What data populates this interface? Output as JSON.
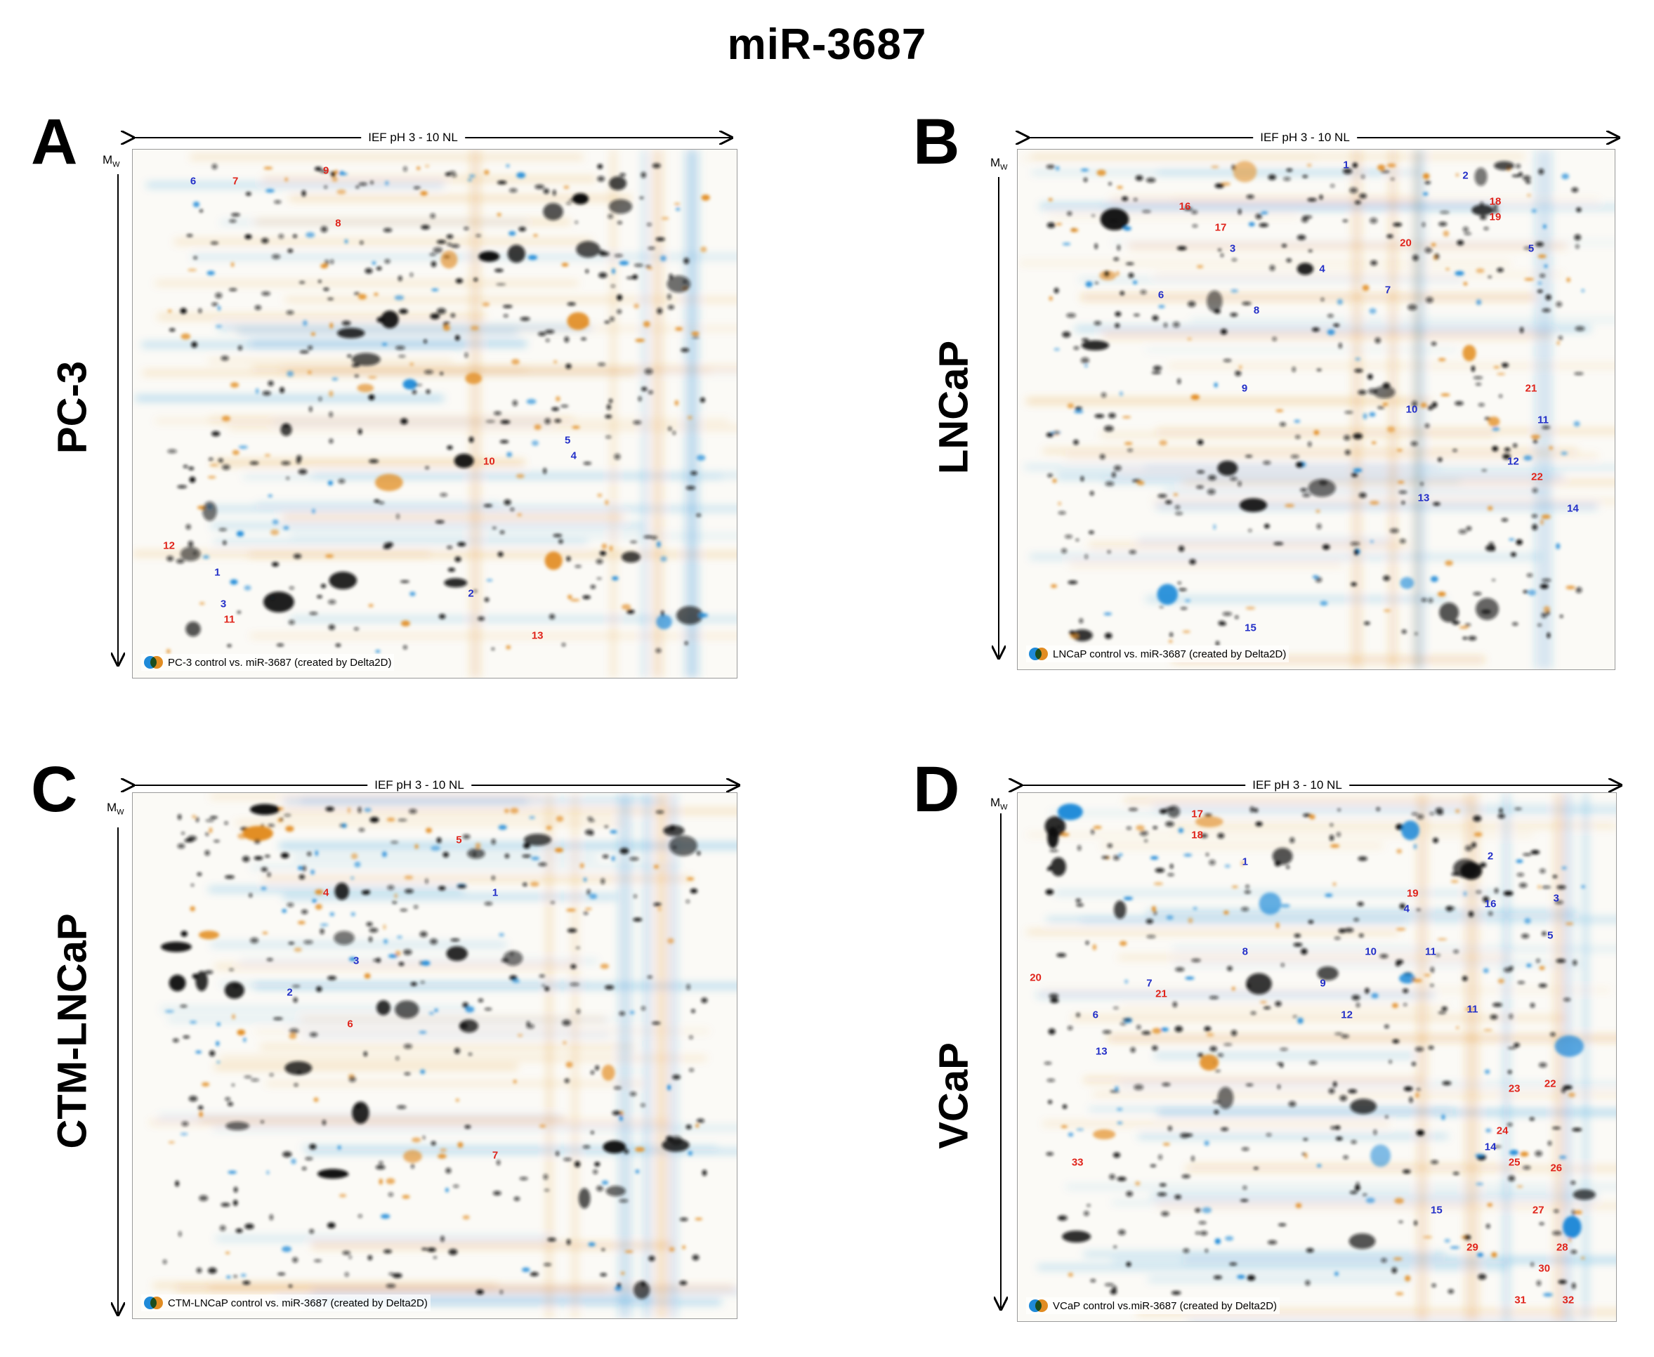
{
  "figure_title": "miR-3687",
  "axis": {
    "ief": "IEF pH 3 - 10 NL",
    "mw": "M",
    "mw_sub": "W"
  },
  "colors": {
    "blue": "#1f8ad8",
    "orange": "#e28d22",
    "spot_dark": "#111111",
    "label_blue": "#2430c8",
    "label_red": "#e0241b"
  },
  "panels": [
    {
      "letter": "A",
      "cell_line": "PC-3",
      "caption": "PC-3 control vs. miR-3687 (created by Delta2D)",
      "spots": [
        {
          "n": "1",
          "c": "blue",
          "x": 14,
          "y": 80
        },
        {
          "n": "2",
          "c": "blue",
          "x": 56,
          "y": 84
        },
        {
          "n": "3",
          "c": "blue",
          "x": 15,
          "y": 86
        },
        {
          "n": "4",
          "c": "blue",
          "x": 73,
          "y": 58
        },
        {
          "n": "5",
          "c": "blue",
          "x": 72,
          "y": 55
        },
        {
          "n": "6",
          "c": "blue",
          "x": 10,
          "y": 6
        },
        {
          "n": "7",
          "c": "red",
          "x": 17,
          "y": 6
        },
        {
          "n": "8",
          "c": "red",
          "x": 34,
          "y": 14
        },
        {
          "n": "9",
          "c": "red",
          "x": 32,
          "y": 4
        },
        {
          "n": "10",
          "c": "red",
          "x": 59,
          "y": 59
        },
        {
          "n": "11",
          "c": "red",
          "x": 16,
          "y": 89
        },
        {
          "n": "12",
          "c": "red",
          "x": 6,
          "y": 75
        },
        {
          "n": "13",
          "c": "red",
          "x": 67,
          "y": 92
        }
      ]
    },
    {
      "letter": "B",
      "cell_line": "LNCaP",
      "caption": "LNCaP control vs. miR-3687 (created by Delta2D)",
      "spots": [
        {
          "n": "1",
          "c": "blue",
          "x": 55,
          "y": 3
        },
        {
          "n": "2",
          "c": "blue",
          "x": 75,
          "y": 5
        },
        {
          "n": "3",
          "c": "blue",
          "x": 36,
          "y": 19
        },
        {
          "n": "4",
          "c": "blue",
          "x": 51,
          "y": 23
        },
        {
          "n": "5",
          "c": "blue",
          "x": 86,
          "y": 19
        },
        {
          "n": "6",
          "c": "blue",
          "x": 24,
          "y": 28
        },
        {
          "n": "7",
          "c": "blue",
          "x": 62,
          "y": 27
        },
        {
          "n": "8",
          "c": "blue",
          "x": 40,
          "y": 31
        },
        {
          "n": "9",
          "c": "blue",
          "x": 38,
          "y": 46
        },
        {
          "n": "10",
          "c": "blue",
          "x": 66,
          "y": 50
        },
        {
          "n": "11",
          "c": "blue",
          "x": 88,
          "y": 52
        },
        {
          "n": "12",
          "c": "blue",
          "x": 83,
          "y": 60
        },
        {
          "n": "13",
          "c": "blue",
          "x": 68,
          "y": 67
        },
        {
          "n": "14",
          "c": "blue",
          "x": 93,
          "y": 69
        },
        {
          "n": "15",
          "c": "blue",
          "x": 39,
          "y": 92
        },
        {
          "n": "16",
          "c": "red",
          "x": 28,
          "y": 11
        },
        {
          "n": "17",
          "c": "red",
          "x": 34,
          "y": 15
        },
        {
          "n": "18",
          "c": "red",
          "x": 80,
          "y": 10
        },
        {
          "n": "19",
          "c": "red",
          "x": 80,
          "y": 13
        },
        {
          "n": "20",
          "c": "red",
          "x": 65,
          "y": 18
        },
        {
          "n": "21",
          "c": "red",
          "x": 86,
          "y": 46
        },
        {
          "n": "22",
          "c": "red",
          "x": 87,
          "y": 63
        }
      ]
    },
    {
      "letter": "C",
      "cell_line": "CTM-LNCaP",
      "caption": "CTM-LNCaP control vs. miR-3687 (created by Delta2D)",
      "spots": [
        {
          "n": "1",
          "c": "blue",
          "x": 60,
          "y": 19
        },
        {
          "n": "2",
          "c": "blue",
          "x": 26,
          "y": 38
        },
        {
          "n": "3",
          "c": "blue",
          "x": 37,
          "y": 32
        },
        {
          "n": "4",
          "c": "red",
          "x": 32,
          "y": 19
        },
        {
          "n": "5",
          "c": "red",
          "x": 54,
          "y": 9
        },
        {
          "n": "6",
          "c": "red",
          "x": 36,
          "y": 44
        },
        {
          "n": "7",
          "c": "red",
          "x": 60,
          "y": 69
        }
      ]
    },
    {
      "letter": "D",
      "cell_line": "VCaP",
      "caption": "VCaP control vs.miR-3687 (created by Delta2D)",
      "spots": [
        {
          "n": "1",
          "c": "blue",
          "x": 38,
          "y": 13
        },
        {
          "n": "2",
          "c": "blue",
          "x": 79,
          "y": 12
        },
        {
          "n": "3",
          "c": "blue",
          "x": 90,
          "y": 20
        },
        {
          "n": "4",
          "c": "blue",
          "x": 65,
          "y": 22
        },
        {
          "n": "5",
          "c": "blue",
          "x": 89,
          "y": 27
        },
        {
          "n": "6",
          "c": "blue",
          "x": 13,
          "y": 42
        },
        {
          "n": "7",
          "c": "blue",
          "x": 22,
          "y": 36
        },
        {
          "n": "8",
          "c": "blue",
          "x": 38,
          "y": 30
        },
        {
          "n": "9",
          "c": "blue",
          "x": 51,
          "y": 36
        },
        {
          "n": "10",
          "c": "blue",
          "x": 59,
          "y": 30
        },
        {
          "n": "11",
          "c": "blue",
          "x": 69,
          "y": 30
        },
        {
          "n": "11",
          "c": "blue",
          "x": 76,
          "y": 41
        },
        {
          "n": "12",
          "c": "blue",
          "x": 55,
          "y": 42
        },
        {
          "n": "13",
          "c": "blue",
          "x": 14,
          "y": 49
        },
        {
          "n": "14",
          "c": "blue",
          "x": 79,
          "y": 67
        },
        {
          "n": "15",
          "c": "blue",
          "x": 70,
          "y": 79
        },
        {
          "n": "16",
          "c": "blue",
          "x": 79,
          "y": 21
        },
        {
          "n": "17",
          "c": "red",
          "x": 30,
          "y": 4
        },
        {
          "n": "18",
          "c": "red",
          "x": 30,
          "y": 8
        },
        {
          "n": "19",
          "c": "red",
          "x": 66,
          "y": 19
        },
        {
          "n": "20",
          "c": "red",
          "x": 3,
          "y": 35
        },
        {
          "n": "21",
          "c": "red",
          "x": 24,
          "y": 38
        },
        {
          "n": "22",
          "c": "red",
          "x": 89,
          "y": 55
        },
        {
          "n": "23",
          "c": "red",
          "x": 83,
          "y": 56
        },
        {
          "n": "24",
          "c": "red",
          "x": 81,
          "y": 64
        },
        {
          "n": "25",
          "c": "red",
          "x": 83,
          "y": 70
        },
        {
          "n": "26",
          "c": "red",
          "x": 90,
          "y": 71
        },
        {
          "n": "27",
          "c": "red",
          "x": 87,
          "y": 79
        },
        {
          "n": "28",
          "c": "red",
          "x": 91,
          "y": 86
        },
        {
          "n": "29",
          "c": "red",
          "x": 76,
          "y": 86
        },
        {
          "n": "30",
          "c": "red",
          "x": 88,
          "y": 90
        },
        {
          "n": "31",
          "c": "red",
          "x": 84,
          "y": 96
        },
        {
          "n": "32",
          "c": "red",
          "x": 92,
          "y": 96
        },
        {
          "n": "33",
          "c": "red",
          "x": 10,
          "y": 70
        }
      ]
    }
  ]
}
